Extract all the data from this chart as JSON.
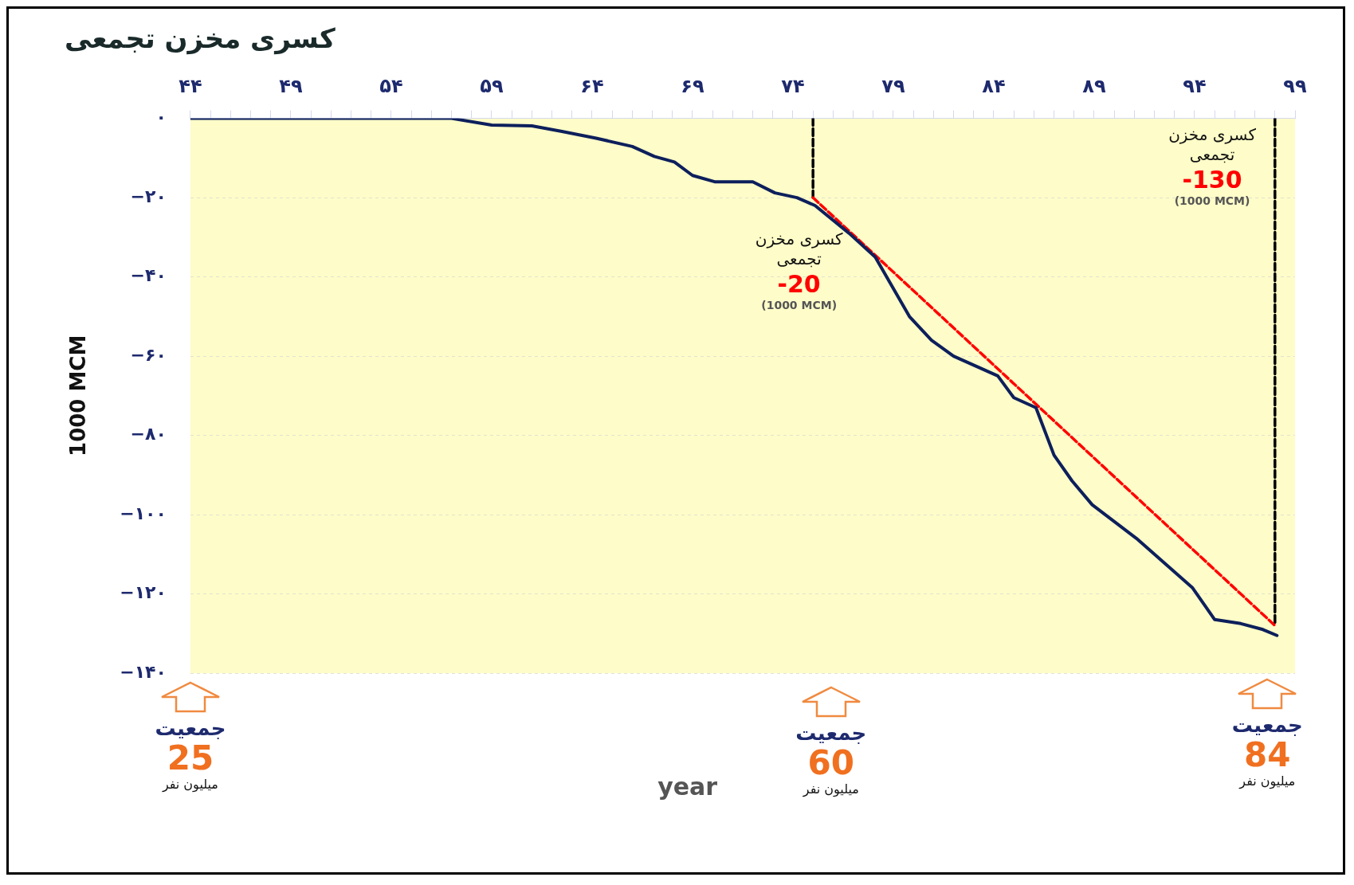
{
  "chart_data": {
    "type": "line",
    "title": "کسری مخزن تجمعی",
    "xlabel": "year",
    "ylabel": "1000 MCM",
    "xlim": [
      44,
      99
    ],
    "ylim": [
      -140,
      0
    ],
    "xticks": [
      {
        "value": 44,
        "label": "۴۴"
      },
      {
        "value": 45,
        "label": null
      },
      {
        "value": 46,
        "label": null
      },
      {
        "value": 47,
        "label": null
      },
      {
        "value": 48,
        "label": null
      },
      {
        "value": 49,
        "label": "۴۹"
      },
      {
        "value": 50,
        "label": null
      },
      {
        "value": 51,
        "label": null
      },
      {
        "value": 52,
        "label": null
      },
      {
        "value": 53,
        "label": null
      },
      {
        "value": 54,
        "label": "۵۴"
      },
      {
        "value": 55,
        "label": null
      },
      {
        "value": 56,
        "label": null
      },
      {
        "value": 57,
        "label": null
      },
      {
        "value": 58,
        "label": null
      },
      {
        "value": 59,
        "label": "۵۹"
      },
      {
        "value": 60,
        "label": null
      },
      {
        "value": 61,
        "label": null
      },
      {
        "value": 62,
        "label": null
      },
      {
        "value": 63,
        "label": null
      },
      {
        "value": 64,
        "label": "۶۴"
      },
      {
        "value": 65,
        "label": null
      },
      {
        "value": 66,
        "label": null
      },
      {
        "value": 67,
        "label": null
      },
      {
        "value": 68,
        "label": null
      },
      {
        "value": 69,
        "label": "۶۹"
      },
      {
        "value": 70,
        "label": null
      },
      {
        "value": 71,
        "label": null
      },
      {
        "value": 72,
        "label": null
      },
      {
        "value": 73,
        "label": null
      },
      {
        "value": 74,
        "label": "۷۴"
      },
      {
        "value": 75,
        "label": null
      },
      {
        "value": 76,
        "label": null
      },
      {
        "value": 77,
        "label": null
      },
      {
        "value": 78,
        "label": null
      },
      {
        "value": 79,
        "label": "۷۹"
      },
      {
        "value": 80,
        "label": null
      },
      {
        "value": 81,
        "label": null
      },
      {
        "value": 82,
        "label": null
      },
      {
        "value": 83,
        "label": null
      },
      {
        "value": 84,
        "label": "۸۴"
      },
      {
        "value": 85,
        "label": null
      },
      {
        "value": 86,
        "label": null
      },
      {
        "value": 87,
        "label": null
      },
      {
        "value": 88,
        "label": null
      },
      {
        "value": 89,
        "label": "۸۹"
      },
      {
        "value": 90,
        "label": null
      },
      {
        "value": 91,
        "label": null
      },
      {
        "value": 92,
        "label": null
      },
      {
        "value": 93,
        "label": null
      },
      {
        "value": 94,
        "label": "۹۴"
      },
      {
        "value": 95,
        "label": null
      },
      {
        "value": 96,
        "label": null
      },
      {
        "value": 97,
        "label": null
      },
      {
        "value": 98,
        "label": null
      },
      {
        "value": 99,
        "label": "۹۹"
      }
    ],
    "yticks": [
      {
        "value": 0,
        "label": "۰"
      },
      {
        "value": -20,
        "label": "−۲۰"
      },
      {
        "value": -40,
        "label": "−۴۰"
      },
      {
        "value": -60,
        "label": "−۶۰"
      },
      {
        "value": -80,
        "label": "−۸۰"
      },
      {
        "value": -100,
        "label": "−۱۰۰"
      },
      {
        "value": -120,
        "label": "−۱۲۰"
      },
      {
        "value": -140,
        "label": "−۱۴۰"
      }
    ],
    "grid": "y",
    "legend": false,
    "marker": "none",
    "series": [
      {
        "color": "#0d1f5c",
        "line_style": "solid",
        "x": [
          44,
          57,
          59,
          61,
          62.5,
          64.2,
          66,
          67.1,
          68.1,
          69,
          70.1,
          72,
          73.1,
          74.2,
          75.1,
          76.8,
          78.1,
          79.8,
          80.9,
          82,
          84.2,
          85,
          86.1,
          87,
          87.9,
          88.9,
          91.1,
          93.9,
          95,
          96.3,
          97.4,
          98.1
        ],
        "values": [
          0,
          0,
          -1.7,
          -1.9,
          -3.3,
          -5,
          -7.1,
          -9.6,
          -11,
          -14.4,
          -16,
          -16,
          -18.8,
          -20,
          -22,
          -29,
          -35,
          -50,
          -56,
          -60,
          -65,
          -70.5,
          -73,
          -85,
          -91.5,
          -97.5,
          -106,
          -118.5,
          -126.5,
          -127.5,
          -129,
          -130.5
        ]
      },
      {
        "color": "#ff0000",
        "line_style": "dashed",
        "x": [
          75,
          98
        ],
        "values": [
          -20,
          -128
        ]
      },
      {
        "color": "#000000",
        "line_style": "dashed",
        "x": [
          75,
          75
        ],
        "values": [
          0,
          -20
        ]
      },
      {
        "color": "#000000",
        "line_style": "dashed",
        "x": [
          98,
          98
        ],
        "values": [
          0,
          -128
        ]
      }
    ],
    "annotations": [
      "کسری مخزن تجمعی",
      "-20",
      "(1000 MCM)",
      "کسری مخزن تجمعی",
      "-130",
      "(1000 MCM)",
      "جمعیت",
      "25",
      "میلیون نفر",
      "جمعیت",
      "60",
      "میلیون نفر",
      "جمعیت",
      "84",
      "میلیون نفر"
    ]
  }
}
